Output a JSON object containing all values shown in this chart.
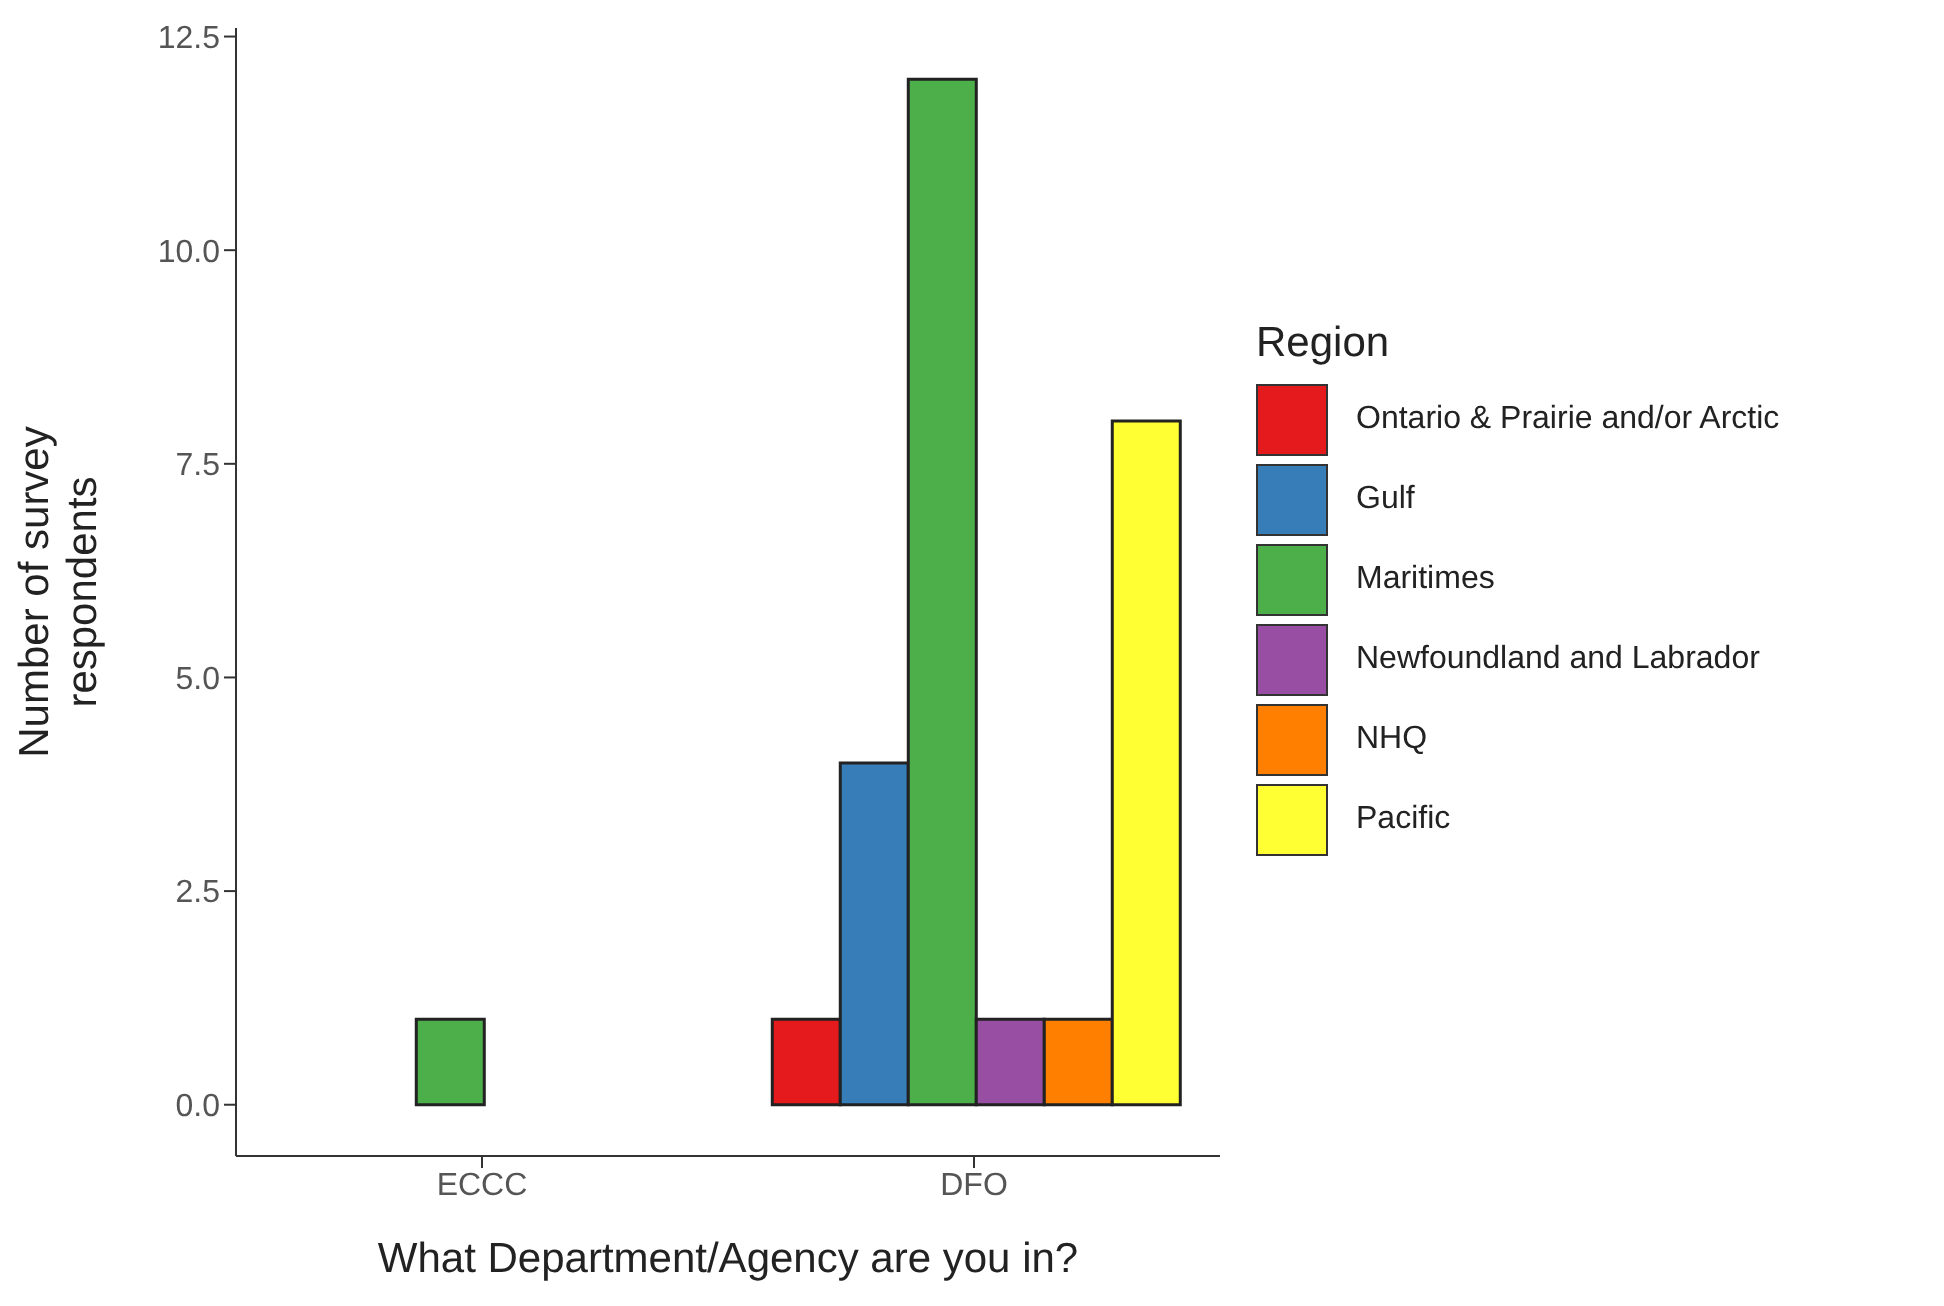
{
  "chart_data": {
    "type": "bar",
    "xlabel": "What Department/Agency are you in?",
    "ylabel": "Number of survey\nrespondents",
    "legend_title": "Region",
    "categories": [
      "ECCC",
      "DFO"
    ],
    "series": [
      {
        "name": "Ontario & Prairie and/or Arctic",
        "color": "#e41a1c",
        "values": [
          0,
          1
        ]
      },
      {
        "name": "Gulf",
        "color": "#377eb8",
        "values": [
          0,
          4
        ]
      },
      {
        "name": "Maritimes",
        "color": "#4daf4a",
        "values": [
          1,
          12
        ]
      },
      {
        "name": "Newfoundland and Labrador",
        "color": "#984ea3",
        "values": [
          0,
          1
        ]
      },
      {
        "name": "NHQ",
        "color": "#ff7f00",
        "values": [
          0,
          1
        ]
      },
      {
        "name": "Pacific",
        "color": "#ffff33",
        "values": [
          0,
          8
        ]
      }
    ],
    "ylim": [
      -0.6,
      12.6
    ],
    "yticks": [
      {
        "value": 0,
        "label": "0.0"
      },
      {
        "value": 2.5,
        "label": "2.5"
      },
      {
        "value": 5,
        "label": "5.0"
      },
      {
        "value": 7.5,
        "label": "7.5"
      },
      {
        "value": 10,
        "label": "10.0"
      },
      {
        "value": 12.5,
        "label": "12.5"
      }
    ],
    "grid": false,
    "legend": "right"
  }
}
